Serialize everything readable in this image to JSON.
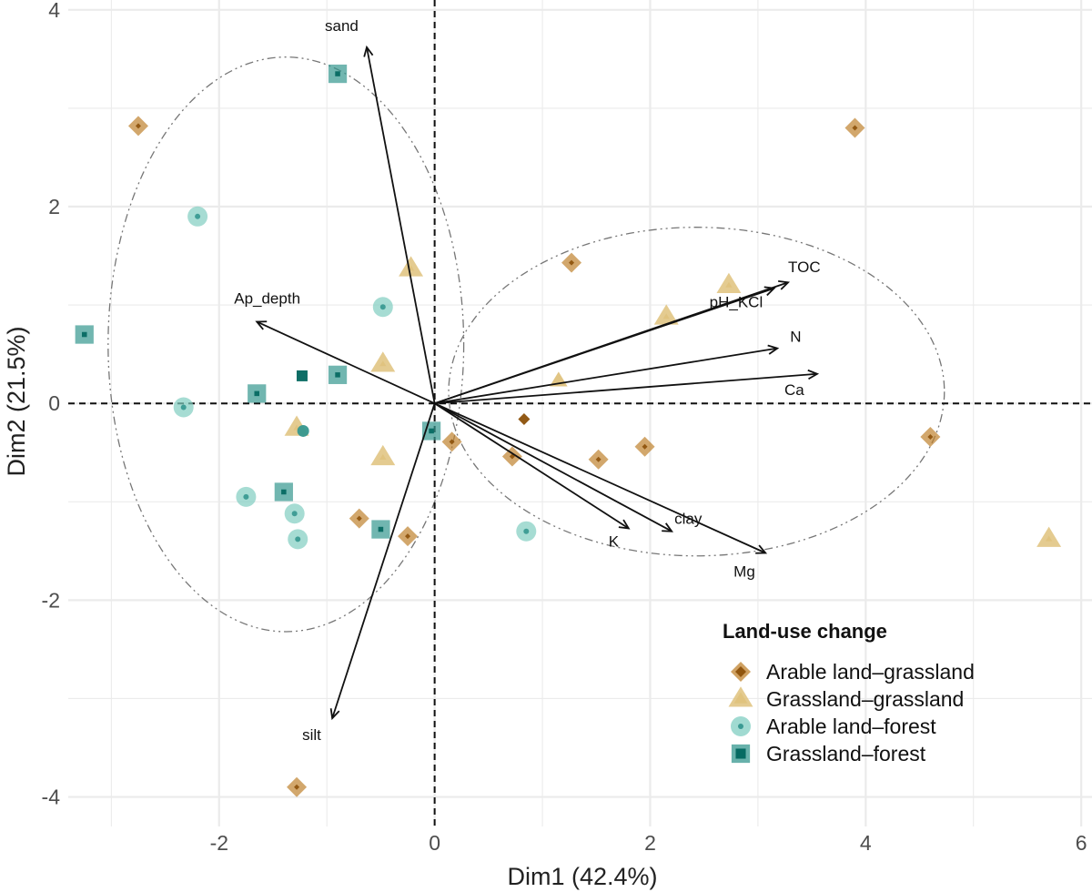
{
  "chart_data": {
    "type": "scatter",
    "subtype": "pca-biplot",
    "xlabel": "Dim1 (42.4%)",
    "ylabel": "Dim2 (21.5%)",
    "xlim": [
      -3.4,
      6.1
    ],
    "ylim": [
      -4.3,
      4.1
    ],
    "x_ticks": [
      -2,
      0,
      2,
      4,
      6
    ],
    "x_tick_labels": [
      "-2",
      "0",
      "2",
      "4",
      "6"
    ],
    "y_ticks": [
      -4,
      -2,
      0,
      2,
      4
    ],
    "y_tick_labels": [
      "-4",
      "-2",
      "0",
      "2",
      "4"
    ],
    "grid": true,
    "legend": {
      "title": "Land-use change",
      "position": "bottom-right",
      "entries": [
        {
          "label": "Arable land–grassland",
          "group": "arable_grassland"
        },
        {
          "label": "Grassland–grassland",
          "group": "grassland_grassland"
        },
        {
          "label": "Arable land–forest",
          "group": "arable_forest"
        },
        {
          "label": "Grassland–forest",
          "group": "grassland_forest"
        }
      ]
    },
    "groups": {
      "arable_grassland": {
        "shape": "diamond",
        "color": "#8c510a",
        "outer_color": "#bf812d"
      },
      "grassland_grassland": {
        "shape": "triangle",
        "color": "#dfc27d",
        "outer_color": "#dfc27d"
      },
      "arable_forest": {
        "shape": "circle",
        "color": "#35978f",
        "outer_color": "#80cdc1"
      },
      "grassland_forest": {
        "shape": "square",
        "color": "#01665e",
        "outer_color": "#35978f"
      }
    },
    "series": [
      {
        "group": "arable_grassland",
        "points": [
          {
            "x": -2.75,
            "y": 2.82
          },
          {
            "x": 3.9,
            "y": 2.8
          },
          {
            "x": 1.27,
            "y": 1.43
          },
          {
            "x": 0.83,
            "y": -0.16,
            "mean": true
          },
          {
            "x": 0.16,
            "y": -0.39
          },
          {
            "x": 0.72,
            "y": -0.54
          },
          {
            "x": 1.52,
            "y": -0.57
          },
          {
            "x": 1.95,
            "y": -0.44
          },
          {
            "x": 4.6,
            "y": -0.34
          },
          {
            "x": -0.7,
            "y": -1.17
          },
          {
            "x": -0.25,
            "y": -1.35
          },
          {
            "x": -1.28,
            "y": -3.9
          }
        ]
      },
      {
        "group": "grassland_grassland",
        "points": [
          {
            "x": -0.22,
            "y": 1.37
          },
          {
            "x": 2.73,
            "y": 1.2
          },
          {
            "x": 2.15,
            "y": 0.88
          },
          {
            "x": 1.15,
            "y": 0.23,
            "mean": true
          },
          {
            "x": -0.48,
            "y": 0.4
          },
          {
            "x": -1.28,
            "y": -0.25
          },
          {
            "x": -0.48,
            "y": -0.55
          },
          {
            "x": 5.7,
            "y": -1.38
          }
        ]
      },
      {
        "group": "arable_forest",
        "points": [
          {
            "x": -2.2,
            "y": 1.9
          },
          {
            "x": -0.48,
            "y": 0.98
          },
          {
            "x": -2.33,
            "y": -0.04
          },
          {
            "x": -1.22,
            "y": -0.28,
            "mean": true
          },
          {
            "x": -1.75,
            "y": -0.95
          },
          {
            "x": -1.3,
            "y": -1.12
          },
          {
            "x": -1.27,
            "y": -1.38
          },
          {
            "x": 0.85,
            "y": -1.3
          }
        ]
      },
      {
        "group": "grassland_forest",
        "points": [
          {
            "x": -0.9,
            "y": 3.35
          },
          {
            "x": -3.25,
            "y": 0.7
          },
          {
            "x": -1.23,
            "y": 0.28,
            "mean": true
          },
          {
            "x": -0.9,
            "y": 0.29
          },
          {
            "x": -1.65,
            "y": 0.1
          },
          {
            "x": -0.03,
            "y": -0.28
          },
          {
            "x": -1.4,
            "y": -0.9
          },
          {
            "x": -0.5,
            "y": -1.28
          }
        ]
      }
    ],
    "variables": [
      {
        "name": "sand",
        "x": -0.63,
        "y": 3.62
      },
      {
        "name": "Ap_depth",
        "x": -1.65,
        "y": 0.83
      },
      {
        "name": "TOC",
        "x": 3.28,
        "y": 1.23
      },
      {
        "name": "pH_KCl",
        "x": 3.15,
        "y": 1.17
      },
      {
        "name": "N",
        "x": 3.18,
        "y": 0.56
      },
      {
        "name": "Ca",
        "x": 3.55,
        "y": 0.3
      },
      {
        "name": "K",
        "x": 1.8,
        "y": -1.27
      },
      {
        "name": "clay",
        "x": 2.2,
        "y": -1.3
      },
      {
        "name": "Mg",
        "x": 3.07,
        "y": -1.52
      },
      {
        "name": "silt",
        "x": -0.95,
        "y": -3.2
      }
    ],
    "ellipses": [
      {
        "group": "left",
        "cx": -1.38,
        "cy": 0.6,
        "rx": 1.65,
        "ry": 2.92
      },
      {
        "group": "right",
        "cx": 2.43,
        "cy": 0.12,
        "rx": 2.3,
        "ry": 1.67
      }
    ]
  }
}
